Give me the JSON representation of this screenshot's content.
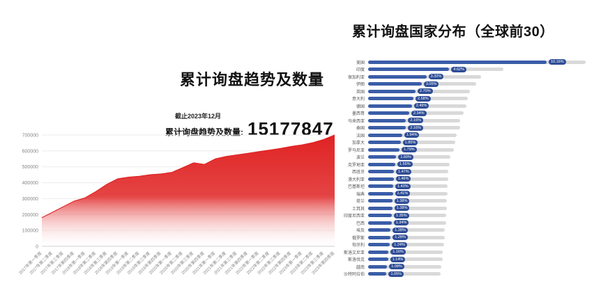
{
  "left_panel": {
    "title": "累计询盘趋势及数量",
    "as_of_label": "截止2023年12月",
    "total_label": "累计询盘趋势及数量:",
    "total_value": "15177847"
  },
  "right_panel": {
    "title": "累计询盘国家分布（全球前30）"
  },
  "colors": {
    "area_red": "#e02323",
    "bar_blue": "#3a5da8",
    "badge_blue": "#2e4d96",
    "track_gray": "#d9d9d9"
  },
  "chart_data": [
    {
      "type": "area",
      "title": "累计询盘趋势及数量",
      "x": [
        "2017年第一季度",
        "2017年第二季度",
        "2017年第三季度",
        "2017年第四季度",
        "2018年第一季度",
        "2018年第二季度",
        "2018年第三季度",
        "2018年第四季度",
        "2019年第一季度",
        "2019年第二季度",
        "2019年第三季度",
        "2019年第四季度",
        "2020年第一季度",
        "2020年第二季度",
        "2020年第三季度",
        "2020年第四季度",
        "2021年第一季度",
        "2021年第二季度",
        "2021年第三季度",
        "2021年第四季度",
        "2022年第一季度",
        "2022年第二季度",
        "2022年第三季度",
        "2022年第四季度",
        "2023年第一季度",
        "2023年第二季度",
        "2023年第三季度",
        "2023年第四季度"
      ],
      "values": [
        180000,
        215000,
        250000,
        285000,
        305000,
        345000,
        390000,
        425000,
        435000,
        440000,
        450000,
        455000,
        465000,
        495000,
        525000,
        515000,
        550000,
        565000,
        575000,
        585000,
        595000,
        605000,
        615000,
        628000,
        638000,
        652000,
        672000,
        700000
      ],
      "xlabel": "",
      "ylabel": "",
      "ylim": [
        0,
        700000
      ],
      "yticks": [
        0,
        100000,
        200000,
        300000,
        400000,
        500000,
        600000,
        700000
      ],
      "grid": true,
      "legend": "none",
      "area_color": "#e02323"
    },
    {
      "type": "bar",
      "orientation": "horizontal",
      "title": "累计询盘国家分布（全球前30）",
      "categories": [
        "美国",
        "印度",
        "保加利亚",
        "伊朗",
        "英国",
        "意大利",
        "德国",
        "墨西哥",
        "马来西亚",
        "泰国",
        "法国",
        "加拿大",
        "罗马尼亚",
        "波兰",
        "克罗地亚",
        "西班牙",
        "澳大利亚",
        "巴基斯坦",
        "瑞典",
        "荷兰",
        "土耳其",
        "印度尼西亚",
        "巴西",
        "埃及",
        "俄罗斯",
        "匈牙利",
        "斯洛文尼亚",
        "斯洛伐克",
        "越南",
        "沙特阿拉伯"
      ],
      "values": [
        10.16,
        4.62,
        3.32,
        3.05,
        2.7,
        2.58,
        2.49,
        2.34,
        2.16,
        2.16,
        1.94,
        1.85,
        1.79,
        1.6,
        1.55,
        1.47,
        1.46,
        1.43,
        1.41,
        1.38,
        1.38,
        1.35,
        1.34,
        1.28,
        1.28,
        1.24,
        1.16,
        1.14,
        1.08,
        1.05
      ],
      "unit": "%",
      "xlim": [
        0,
        10.16
      ],
      "grid": false,
      "legend": "none",
      "bar_color": "#3a5da8"
    }
  ]
}
